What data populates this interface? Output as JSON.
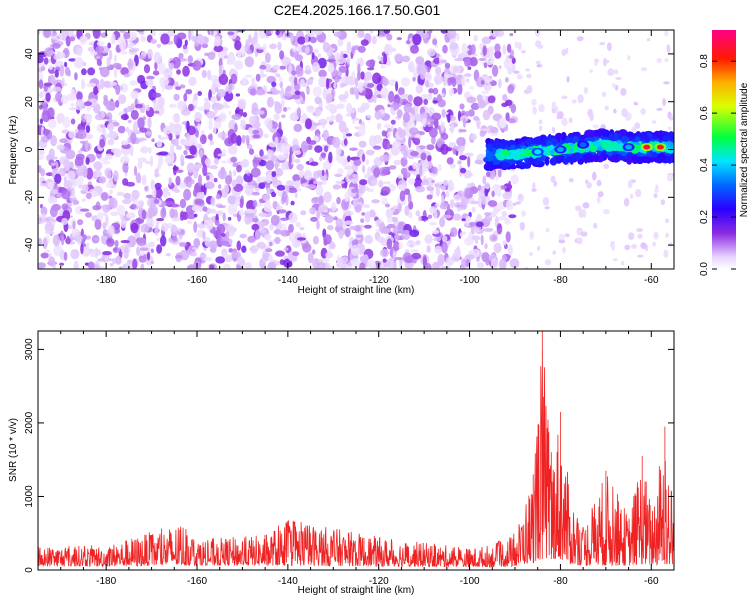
{
  "title": "C2E4.2025.166.17.50.G01",
  "colors": {
    "snr_line": "#ee2222",
    "axis": "#000000",
    "background": "#ffffff"
  },
  "chart_data": [
    {
      "type": "heatmap",
      "xlabel": "Height of straight line (km)",
      "ylabel": "Frequency (Hz)",
      "xlim": [
        -195,
        -55
      ],
      "ylim": [
        -50,
        50
      ],
      "x_ticks": [
        -180,
        -160,
        -140,
        -120,
        -100,
        -80,
        -60
      ],
      "y_ticks": [
        -40,
        -20,
        0,
        20,
        40
      ],
      "colorbar": {
        "label": "Normalized spectral amplitude",
        "range": [
          0,
          0.92
        ],
        "ticks": [
          0.0,
          0.2,
          0.4,
          0.6,
          0.8
        ],
        "colormap": "white-violet-blue-cyan-green-yellow-red-magenta"
      },
      "noise_region": {
        "x_range": [
          -195,
          -90
        ],
        "y_range": [
          -50,
          50
        ],
        "amplitude_range": [
          0.0,
          0.15
        ]
      },
      "signal_band": {
        "x_range": [
          -96,
          -55
        ],
        "center_frequency": [
          {
            "x": -96,
            "y": -2
          },
          {
            "x": -90,
            "y": -2
          },
          {
            "x": -85,
            "y": -1
          },
          {
            "x": -80,
            "y": 0
          },
          {
            "x": -75,
            "y": 1
          },
          {
            "x": -70,
            "y": 2
          },
          {
            "x": -65,
            "y": 1
          },
          {
            "x": -60,
            "y": 1
          },
          {
            "x": -55,
            "y": 1
          }
        ],
        "half_width": 4,
        "peaks": [
          {
            "x": -85,
            "y": -1,
            "amplitude": 0.45
          },
          {
            "x": -80,
            "y": 0,
            "amplitude": 0.4
          },
          {
            "x": -75,
            "y": 2,
            "amplitude": 0.35
          },
          {
            "x": -65,
            "y": 1,
            "amplitude": 0.4
          },
          {
            "x": -61,
            "y": 1,
            "amplitude": 0.92
          },
          {
            "x": -58,
            "y": 1,
            "amplitude": 0.9
          }
        ]
      }
    },
    {
      "type": "line",
      "xlabel": "Height of straight line (km)",
      "ylabel": "SNR (10 * v/v)",
      "xlim": [
        -195,
        -55
      ],
      "ylim": [
        0,
        3250
      ],
      "x_ticks": [
        -180,
        -160,
        -140,
        -120,
        -100,
        -80,
        -60
      ],
      "y_ticks": [
        0,
        1000,
        2000,
        3000
      ],
      "series": [
        {
          "envelope": [
            {
              "x": -195,
              "min": 50,
              "max": 330
            },
            {
              "x": -180,
              "min": 50,
              "max": 340
            },
            {
              "x": -163,
              "min": 60,
              "max": 650
            },
            {
              "x": -160,
              "min": 60,
              "max": 420
            },
            {
              "x": -145,
              "min": 60,
              "max": 480
            },
            {
              "x": -140,
              "min": 60,
              "max": 700
            },
            {
              "x": -120,
              "min": 50,
              "max": 450
            },
            {
              "x": -100,
              "min": 40,
              "max": 300
            },
            {
              "x": -95,
              "min": 40,
              "max": 350
            },
            {
              "x": -90,
              "min": 50,
              "max": 500
            },
            {
              "x": -88,
              "min": 80,
              "max": 900
            },
            {
              "x": -86,
              "min": 100,
              "max": 1300
            },
            {
              "x": -84,
              "min": 150,
              "max": 3250
            },
            {
              "x": -82,
              "min": 150,
              "max": 1600
            },
            {
              "x": -80,
              "min": 150,
              "max": 2150
            },
            {
              "x": -78,
              "min": 80,
              "max": 1100
            },
            {
              "x": -75,
              "min": 60,
              "max": 600
            },
            {
              "x": -70,
              "min": 60,
              "max": 1350
            },
            {
              "x": -67,
              "min": 60,
              "max": 1000
            },
            {
              "x": -65,
              "min": 60,
              "max": 750
            },
            {
              "x": -62,
              "min": 80,
              "max": 1550
            },
            {
              "x": -60,
              "min": 60,
              "max": 900
            },
            {
              "x": -57,
              "min": 80,
              "max": 1950
            },
            {
              "x": -55,
              "min": 50,
              "max": 900
            }
          ]
        }
      ]
    }
  ]
}
